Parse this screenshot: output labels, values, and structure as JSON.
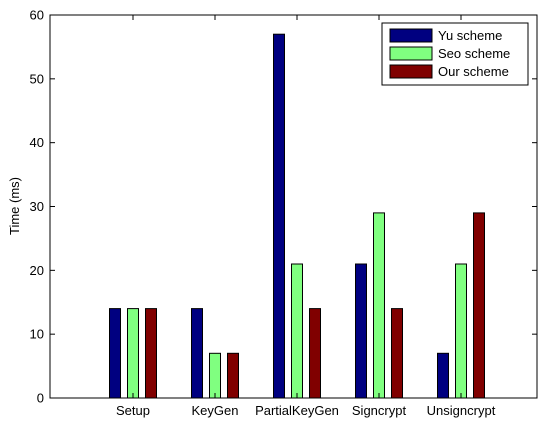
{
  "chart_data": {
    "type": "bar",
    "title": "",
    "xlabel": "",
    "ylabel": "Time (ms)",
    "ylim": [
      0,
      60
    ],
    "yticks": [
      0,
      10,
      20,
      30,
      40,
      50,
      60
    ],
    "categories": [
      "Setup",
      "KeyGen",
      "PartialKeyGen",
      "Signcrypt",
      "Unsigncrypt"
    ],
    "series": [
      {
        "name": "Yu scheme",
        "color": "#000080",
        "values": [
          14,
          14,
          57,
          21,
          7
        ]
      },
      {
        "name": "Seo scheme",
        "color": "#80ff80",
        "values": [
          14,
          7,
          21,
          29,
          21
        ]
      },
      {
        "name": "Our scheme",
        "color": "#800000",
        "values": [
          14,
          7,
          14,
          14,
          29
        ]
      }
    ],
    "grid": false,
    "legend_position": "top-right"
  }
}
